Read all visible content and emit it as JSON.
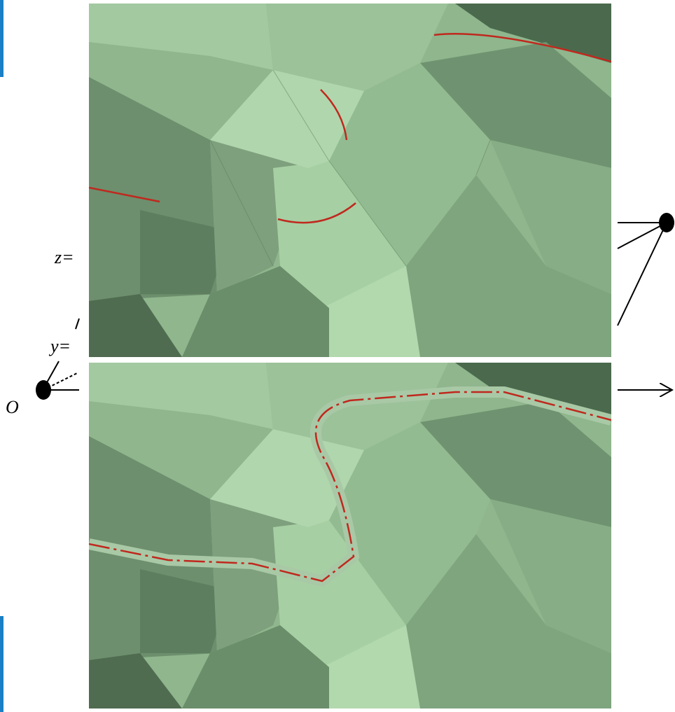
{
  "labels": {
    "z": "z=",
    "y": "y=",
    "origin": "O"
  }
}
